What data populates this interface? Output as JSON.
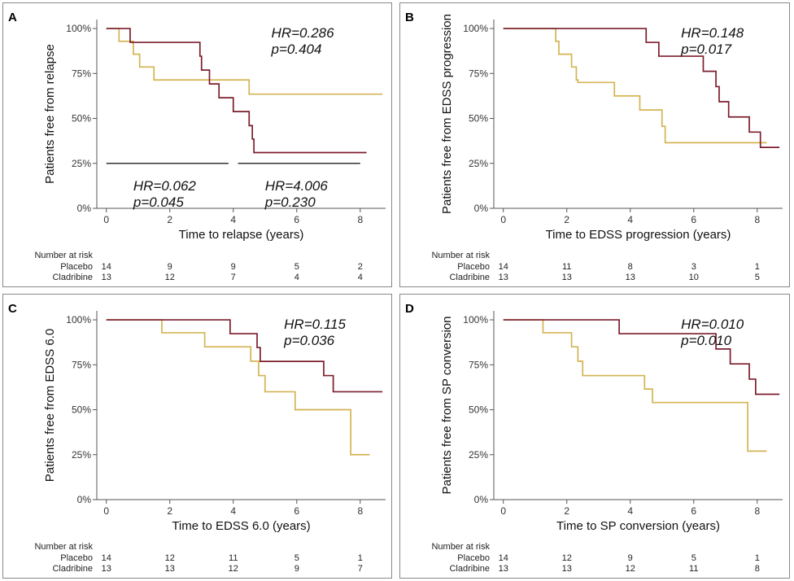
{
  "chart_data": [
    {
      "type": "line",
      "panel": "A",
      "title": "",
      "xlabel": "Time to relapse (years)",
      "ylabel": "Patients free from relapse",
      "xlim": [
        -0.3,
        8.8
      ],
      "ylim": [
        0,
        1.05
      ],
      "xticks": [
        0,
        2,
        4,
        6,
        8
      ],
      "yticks": [
        0,
        0.25,
        0.5,
        0.75,
        1
      ],
      "ytick_labels": [
        "0%",
        "25%",
        "50%",
        "75%",
        "100%"
      ],
      "series": [
        {
          "name": "Placebo",
          "color": "#d4b453",
          "x": [
            0,
            0.4,
            0.75,
            0.85,
            1.05,
            1.5,
            4.5,
            8.7
          ],
          "y": [
            1.0,
            0.929,
            0.929,
            0.857,
            0.786,
            0.714,
            0.635,
            0.635
          ]
        },
        {
          "name": "Cladribine",
          "color": "#7b1e2c",
          "x": [
            0,
            0.75,
            2.95,
            3.0,
            3.25,
            3.55,
            4.0,
            4.5,
            4.6,
            4.65,
            8.2
          ],
          "y": [
            1.0,
            0.923,
            0.846,
            0.769,
            0.692,
            0.615,
            0.538,
            0.46,
            0.385,
            0.31,
            0.31
          ]
        }
      ],
      "segments": [
        {
          "x0": 0,
          "x1": 3.85,
          "y": 0.25
        },
        {
          "x0": 4.15,
          "x1": 8.0,
          "y": 0.25
        }
      ],
      "annotations": [
        {
          "lines": [
            "HR=0.286",
            "p=0.404"
          ],
          "x": 5.2,
          "y": 0.95
        },
        {
          "lines": [
            "HR=0.062",
            "p=0.045"
          ],
          "x": 0.85,
          "y": 0.1
        },
        {
          "lines": [
            "HR=4.006",
            "p=0.230"
          ],
          "x": 5.0,
          "y": 0.1
        }
      ],
      "risk_table": {
        "title": "Number at risk",
        "times": [
          0,
          2,
          4,
          6,
          8
        ],
        "rows": [
          {
            "label": "Placebo",
            "values": [
              "14",
              "9",
              "9",
              "5",
              "2"
            ]
          },
          {
            "label": "Cladribine",
            "values": [
              "13",
              "12",
              "7",
              "4",
              "4"
            ]
          }
        ]
      }
    },
    {
      "type": "line",
      "panel": "B",
      "title": "",
      "xlabel": "Time to EDSS progression (years)",
      "ylabel": "Patients free from EDSS progression",
      "xlim": [
        -0.3,
        8.8
      ],
      "ylim": [
        0,
        1.05
      ],
      "xticks": [
        0,
        2,
        4,
        6,
        8
      ],
      "yticks": [
        0,
        0.25,
        0.5,
        0.75,
        1
      ],
      "ytick_labels": [
        "0%",
        "25%",
        "50%",
        "75%",
        "100%"
      ],
      "series": [
        {
          "name": "Placebo",
          "color": "#d4b453",
          "x": [
            0,
            1.65,
            1.75,
            2.15,
            2.3,
            2.35,
            3.5,
            4.3,
            5.0,
            5.1,
            8.3
          ],
          "y": [
            1.0,
            0.929,
            0.857,
            0.786,
            0.714,
            0.7,
            0.625,
            0.547,
            0.456,
            0.365,
            0.365
          ]
        },
        {
          "name": "Cladribine",
          "color": "#7b1e2c",
          "x": [
            0,
            4.5,
            4.9,
            6.3,
            6.7,
            6.8,
            7.1,
            7.75,
            8.1,
            8.7
          ],
          "y": [
            1.0,
            0.923,
            0.846,
            0.762,
            0.677,
            0.593,
            0.508,
            0.424,
            0.339,
            0.339
          ]
        }
      ],
      "annotations": [
        {
          "lines": [
            "HR=0.148",
            "p=0.017"
          ],
          "x": 5.6,
          "y": 0.95
        }
      ],
      "risk_table": {
        "title": "Number at risk",
        "times": [
          0,
          2,
          4,
          6,
          8
        ],
        "rows": [
          {
            "label": "Placebo",
            "values": [
              "14",
              "11",
              "8",
              "3",
              "1"
            ]
          },
          {
            "label": "Cladribine",
            "values": [
              "13",
              "13",
              "13",
              "10",
              "5"
            ]
          }
        ]
      }
    },
    {
      "type": "line",
      "panel": "C",
      "title": "",
      "xlabel": "Time to EDSS 6.0 (years)",
      "ylabel": "Patients free from EDSS 6.0",
      "xlim": [
        -0.3,
        8.8
      ],
      "ylim": [
        0,
        1.05
      ],
      "xticks": [
        0,
        2,
        4,
        6,
        8
      ],
      "yticks": [
        0,
        0.25,
        0.5,
        0.75,
        1
      ],
      "ytick_labels": [
        "0%",
        "25%",
        "50%",
        "75%",
        "100%"
      ],
      "series": [
        {
          "name": "Placebo",
          "color": "#d4b453",
          "x": [
            0,
            1.75,
            3.1,
            4.55,
            4.8,
            5.0,
            5.95,
            7.7,
            8.3
          ],
          "y": [
            1.0,
            0.928,
            0.85,
            0.77,
            0.69,
            0.6,
            0.5,
            0.25,
            0.25
          ]
        },
        {
          "name": "Cladribine",
          "color": "#7b1e2c",
          "x": [
            0,
            3.9,
            4.75,
            4.85,
            6.85,
            7.15,
            8.7
          ],
          "y": [
            1.0,
            0.923,
            0.846,
            0.769,
            0.69,
            0.6,
            0.6
          ]
        }
      ],
      "annotations": [
        {
          "lines": [
            "HR=0.115",
            "p=0.036"
          ],
          "x": 5.6,
          "y": 0.95
        }
      ],
      "risk_table": {
        "title": "Number at risk",
        "times": [
          0,
          2,
          4,
          6,
          8
        ],
        "rows": [
          {
            "label": "Placebo",
            "values": [
              "14",
              "12",
              "11",
              "5",
              "1"
            ]
          },
          {
            "label": "Cladribine",
            "values": [
              "13",
              "13",
              "12",
              "9",
              "7"
            ]
          }
        ]
      }
    },
    {
      "type": "line",
      "panel": "D",
      "title": "",
      "xlabel": "Time to SP conversion (years)",
      "ylabel": "Patients free from SP conversion",
      "xlim": [
        -0.3,
        8.8
      ],
      "ylim": [
        0,
        1.05
      ],
      "xticks": [
        0,
        2,
        4,
        6,
        8
      ],
      "yticks": [
        0,
        0.25,
        0.5,
        0.75,
        1
      ],
      "ytick_labels": [
        "0%",
        "25%",
        "50%",
        "75%",
        "100%"
      ],
      "series": [
        {
          "name": "Placebo",
          "color": "#d4b453",
          "x": [
            0,
            1.25,
            2.15,
            2.35,
            2.5,
            4.45,
            4.7,
            7.7,
            8.3
          ],
          "y": [
            1.0,
            0.928,
            0.85,
            0.77,
            0.69,
            0.615,
            0.54,
            0.27,
            0.27
          ]
        },
        {
          "name": "Cladribine",
          "color": "#7b1e2c",
          "x": [
            0,
            3.65,
            6.7,
            7.15,
            7.75,
            7.95,
            8.7
          ],
          "y": [
            1.0,
            0.923,
            0.838,
            0.755,
            0.67,
            0.586,
            0.586
          ]
        }
      ],
      "annotations": [
        {
          "lines": [
            "HR=0.010",
            "p=0.010"
          ],
          "x": 5.6,
          "y": 0.95
        }
      ],
      "risk_table": {
        "title": "Number at risk",
        "times": [
          0,
          2,
          4,
          6,
          8
        ],
        "rows": [
          {
            "label": "Placebo",
            "values": [
              "14",
              "12",
              "9",
              "5",
              "1"
            ]
          },
          {
            "label": "Cladribine",
            "values": [
              "13",
              "13",
              "12",
              "11",
              "8"
            ]
          }
        ]
      }
    }
  ]
}
